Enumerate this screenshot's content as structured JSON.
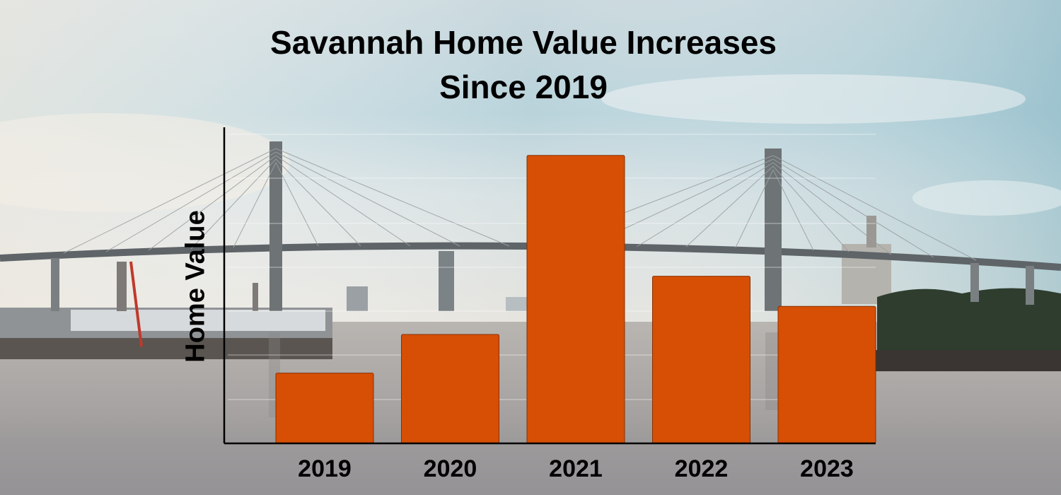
{
  "chart_data": {
    "type": "bar",
    "title_lines": [
      "Savannah Home Value Increases",
      "Since 2019"
    ],
    "xlabel": "",
    "ylabel": "Home Value",
    "categories": [
      "2019",
      "2020",
      "2021",
      "2022",
      "2023"
    ],
    "values": [
      100,
      155,
      410,
      238,
      195
    ],
    "ylim": [
      0,
      450
    ],
    "grid": false,
    "y_tick_labels": false,
    "bar_color": "#d64f05",
    "bar_edge_color": "#8a3000",
    "axis_color": "#000000"
  }
}
